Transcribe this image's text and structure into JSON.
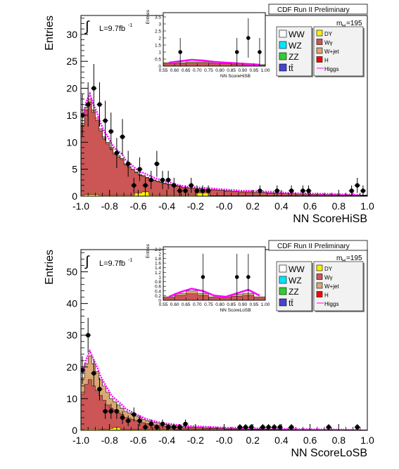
{
  "colors": {
    "WW": "#ffffff",
    "WZ": "#00e5ff",
    "ZZ": "#33cc33",
    "tt": "#4444cc",
    "DY": "#ffee00",
    "Wgamma": "#cc5555",
    "Wjet": "#d9a875",
    "H": "#ff0000",
    "Higgs": "#ff00ff",
    "data": "#000000"
  },
  "chart_data": [
    {
      "type": "bar",
      "panel": "top",
      "header": "CDF Run II Preliminary",
      "mass_label": "m",
      "mass_sub": "H",
      "mass_value": "=195",
      "lumi": "L=9.7fb",
      "lumi_sup": "-1",
      "integral": "∫",
      "xlabel": "NN ScoreHiSB",
      "ylabel": "Entries",
      "xlim": [
        -1.0,
        1.0
      ],
      "ylim": [
        0,
        33.5
      ],
      "xticks": [
        "-1.0",
        "-0.8",
        "-0.6",
        "-0.4",
        "-0.2",
        "-0.0",
        "0.2",
        "0.4",
        "0.6",
        "0.8",
        "1.0"
      ],
      "yticks": [
        "0",
        "5",
        "10",
        "15",
        "20",
        "25",
        "30"
      ],
      "legend": {
        "left": [
          {
            "label": "WW",
            "key": "WW"
          },
          {
            "label": "WZ",
            "key": "WZ"
          },
          {
            "label": "ZZ",
            "key": "ZZ"
          },
          {
            "label": "tt̄",
            "key": "tt"
          }
        ],
        "right": [
          {
            "label": "DY",
            "key": "DY"
          },
          {
            "label": "Wγ",
            "key": "Wgamma"
          },
          {
            "label": "W+jet",
            "key": "Wjet"
          },
          {
            "label": "H",
            "key": "H"
          },
          {
            "label": "Higgs",
            "key": "Higgs",
            "line": true
          }
        ]
      },
      "bin_edges": [
        -1.0,
        -0.9,
        -0.8,
        -0.7,
        -0.6,
        -0.5,
        -0.4,
        -0.3,
        -0.2,
        -0.1,
        0.0,
        0.1,
        0.2,
        0.3,
        0.4,
        0.5,
        0.6,
        0.7,
        0.8,
        0.9,
        1.0
      ],
      "fine_bins": {
        "edges": [
          -1.0,
          -0.975,
          -0.95,
          -0.925,
          -0.9,
          -0.875,
          -0.85,
          -0.825,
          -0.8,
          -0.775,
          -0.75,
          -0.725,
          -0.7,
          -0.675,
          -0.65,
          -0.625,
          -0.6,
          -0.575,
          -0.55,
          -0.525,
          -0.5,
          -0.475,
          -0.45,
          -0.425,
          -0.4,
          -0.35,
          -0.3,
          -0.25,
          -0.2,
          -0.15,
          -0.1,
          -0.05,
          0.0,
          0.05,
          0.1,
          0.15,
          0.2,
          0.3,
          0.4,
          0.5,
          0.6,
          0.7,
          0.8,
          0.9,
          1.0
        ],
        "stack_total": [
          13.5,
          16.5,
          18,
          16,
          14.5,
          12.5,
          11,
          10,
          9,
          8,
          7.5,
          7,
          6,
          5.5,
          5,
          4.5,
          4,
          3.8,
          3.5,
          3.2,
          3,
          2.8,
          2.6,
          2.4,
          2.2,
          1.9,
          1.6,
          1.5,
          1.4,
          1.3,
          1.2,
          1.1,
          1.0,
          0.9,
          0.8,
          0.8,
          0.7,
          0.6,
          0.5,
          0.4,
          0.35,
          0.3,
          0.25,
          0.2
        ],
        "dy": [
          0.2,
          0.3,
          0.3,
          0.3,
          0.3,
          0.2,
          0.2,
          0.2,
          0.2,
          0.2,
          0.2,
          0.2,
          0.2,
          0.2,
          0.2,
          0.6,
          0.6,
          0.8,
          0.8,
          0.2,
          0.2,
          0.2,
          0.2,
          0.2,
          0.2,
          0.2,
          0.2,
          0.2,
          0.6,
          0.6,
          0.1,
          0.1,
          0.1,
          0.1,
          0.1,
          0.1,
          0.1,
          0.1,
          0.1,
          0.1,
          0.1,
          0.1,
          0.1,
          0.1
        ],
        "higgs": [
          14.5,
          17.5,
          19,
          17,
          15.5,
          13.5,
          12,
          11,
          9.8,
          8.8,
          8.3,
          7.8,
          6.7,
          6.2,
          5.6,
          5.0,
          4.5,
          4.3,
          4.0,
          3.7,
          3.4,
          3.2,
          2.9,
          2.7,
          2.5,
          2.1,
          1.8,
          1.7,
          1.6,
          1.5,
          1.4,
          1.3,
          1.2,
          1.1,
          1.0,
          1.0,
          0.9,
          0.8,
          0.6,
          0.5,
          0.45,
          0.4,
          0.3,
          0.25
        ]
      },
      "data_points": [
        {
          "x": -0.99,
          "y": 15,
          "err": 3.9
        },
        {
          "x": -0.95,
          "y": 17,
          "err": 4.1
        },
        {
          "x": -0.91,
          "y": 20,
          "err": 4.5
        },
        {
          "x": -0.87,
          "y": 17,
          "err": 4.1
        },
        {
          "x": -0.83,
          "y": 14,
          "err": 3.7
        },
        {
          "x": -0.79,
          "y": 12,
          "err": 3.5
        },
        {
          "x": -0.75,
          "y": 8,
          "err": 2.8
        },
        {
          "x": -0.71,
          "y": 11,
          "err": 3.3
        },
        {
          "x": -0.67,
          "y": 6,
          "err": 2.4
        },
        {
          "x": -0.63,
          "y": 2,
          "err": 1.4
        },
        {
          "x": -0.59,
          "y": 5,
          "err": 2.2
        },
        {
          "x": -0.55,
          "y": 2,
          "err": 1.4
        },
        {
          "x": -0.51,
          "y": 3,
          "err": 1.7
        },
        {
          "x": -0.47,
          "y": 6,
          "err": 2.4
        },
        {
          "x": -0.43,
          "y": 3,
          "err": 1.7
        },
        {
          "x": -0.39,
          "y": 3,
          "err": 1.7
        },
        {
          "x": -0.35,
          "y": 2,
          "err": 1.4
        },
        {
          "x": -0.31,
          "y": 1,
          "err": 1.0
        },
        {
          "x": -0.27,
          "y": 1,
          "err": 1.0
        },
        {
          "x": -0.23,
          "y": 2,
          "err": 1.4
        },
        {
          "x": -0.19,
          "y": 1,
          "err": 1.0
        },
        {
          "x": -0.15,
          "y": 1,
          "err": 1.0
        },
        {
          "x": -0.11,
          "y": 1,
          "err": 1.0
        },
        {
          "x": 0.25,
          "y": 1,
          "err": 1.0
        },
        {
          "x": 0.37,
          "y": 1,
          "err": 1.0
        },
        {
          "x": 0.47,
          "y": 1,
          "err": 1.0
        },
        {
          "x": 0.55,
          "y": 1,
          "err": 1.0
        },
        {
          "x": 0.59,
          "y": 1,
          "err": 1.0
        },
        {
          "x": 0.89,
          "y": 1,
          "err": 1.0
        },
        {
          "x": 0.93,
          "y": 2,
          "err": 1.4
        },
        {
          "x": 0.97,
          "y": 1,
          "err": 1.0
        }
      ],
      "inset": {
        "xlabel": "NN ScoreHiSB",
        "ylabel": "Entries",
        "xlim": [
          0.55,
          1.0
        ],
        "ylim": [
          0,
          3.8
        ],
        "xticks": [
          "0.55",
          "0.60",
          "0.65",
          "0.70",
          "0.75",
          "0.80",
          "0.85",
          "0.90",
          "0.95",
          "1.00"
        ],
        "yticks": [
          "0",
          "0.5",
          "1",
          "1.5",
          "2",
          "2.5",
          "3",
          "3.5"
        ],
        "edges": [
          0.55,
          0.6,
          0.65,
          0.7,
          0.75,
          0.8,
          0.85,
          0.9,
          0.95,
          1.0
        ],
        "stack_total": [
          0.25,
          0.25,
          0.3,
          0.3,
          0.25,
          0.25,
          0.2,
          0.15,
          0.1
        ],
        "higgs": [
          0.25,
          0.35,
          0.45,
          0.4,
          0.3,
          0.25,
          0.2,
          0.15,
          0.1
        ],
        "data_points": [
          {
            "x": 0.625,
            "y": 1,
            "err": 1.0
          },
          {
            "x": 0.875,
            "y": 1,
            "err": 1.0
          },
          {
            "x": 0.925,
            "y": 2,
            "err": 1.4
          },
          {
            "x": 0.975,
            "y": 1,
            "err": 1.0
          }
        ]
      }
    },
    {
      "type": "bar",
      "panel": "bottom",
      "header": "CDF Run II Preliminary",
      "mass_label": "m",
      "mass_sub": "H",
      "mass_value": "=195",
      "lumi": "L=9.7fb",
      "lumi_sup": "-1",
      "integral": "∫",
      "xlabel": "NN ScoreLoSB",
      "ylabel": "Entries",
      "xlim": [
        -1.0,
        1.0
      ],
      "ylim": [
        0,
        57
      ],
      "xticks": [
        "-1.0",
        "-0.8",
        "-0.6",
        "-0.4",
        "-0.2",
        "-0.0",
        "0.2",
        "0.4",
        "0.6",
        "0.8",
        "1.0"
      ],
      "yticks": [
        "0",
        "10",
        "20",
        "30",
        "40",
        "50"
      ],
      "legend": {
        "left": [
          {
            "label": "WW",
            "key": "WW"
          },
          {
            "label": "WZ",
            "key": "WZ"
          },
          {
            "label": "ZZ",
            "key": "ZZ"
          },
          {
            "label": "tt̄",
            "key": "tt"
          }
        ],
        "right": [
          {
            "label": "DY",
            "key": "DY"
          },
          {
            "label": "Wγ",
            "key": "Wgamma"
          },
          {
            "label": "W+jet",
            "key": "Wjet"
          },
          {
            "label": "H",
            "key": "H"
          },
          {
            "label": "Higgs",
            "key": "Higgs",
            "line": true
          }
        ]
      },
      "fine_bins": {
        "edges": [
          -1.0,
          -0.975,
          -0.95,
          -0.925,
          -0.9,
          -0.875,
          -0.85,
          -0.825,
          -0.8,
          -0.775,
          -0.75,
          -0.725,
          -0.7,
          -0.675,
          -0.65,
          -0.625,
          -0.6,
          -0.575,
          -0.55,
          -0.525,
          -0.5,
          -0.475,
          -0.45,
          -0.425,
          -0.4,
          -0.35,
          -0.3,
          -0.25,
          -0.2,
          -0.15,
          -0.1,
          -0.05,
          0.0,
          0.05,
          0.1,
          0.15,
          0.2,
          0.3,
          0.4,
          0.5,
          0.6,
          0.7,
          0.8,
          0.9,
          1.0
        ],
        "stack_total": [
          16.5,
          21,
          23.5,
          21,
          18.5,
          16,
          14,
          12,
          10,
          9,
          8,
          7,
          6,
          5.5,
          5,
          4.5,
          4,
          3.5,
          3,
          2.8,
          2.5,
          2.3,
          2.1,
          1.9,
          1.7,
          1.4,
          1.2,
          1.1,
          1.0,
          0.9,
          0.8,
          0.7,
          0.6,
          0.6,
          0.5,
          0.5,
          0.4,
          0.35,
          0.3,
          0.25,
          0.2,
          0.2,
          0.15,
          0.1
        ],
        "red": [
          11.5,
          14.5,
          16,
          14,
          12.5,
          11,
          9.5,
          8,
          7,
          6.5,
          5.5,
          5,
          4,
          3.8,
          3.4,
          3.1,
          2.7,
          2.4,
          2.1,
          1.9,
          1.7,
          1.6,
          1.4,
          1.3,
          1.2,
          1.0,
          0.8,
          0.8,
          0.7,
          0.6,
          0.6,
          0.5,
          0.4,
          0.4,
          0.4,
          0.35,
          0.3,
          0.25,
          0.2,
          0.18,
          0.15,
          0.15,
          0.1,
          0.08
        ],
        "dy": [
          0.3,
          0.4,
          0.4,
          0.4,
          0.4,
          0.3,
          0.3,
          0.3,
          0.6,
          0.9,
          0.9,
          0.3,
          0.3,
          0.3,
          0.3,
          0.3,
          0.3,
          0.3,
          0.3,
          0.3,
          0.3,
          0.3,
          0.3,
          0.3,
          0.3,
          0.2,
          0.2,
          0.2,
          0.2,
          0.2,
          0.1,
          0.1,
          0.1,
          0.1,
          0.1,
          0.1,
          0.1,
          0.1,
          0.1,
          0.1,
          0.1,
          0.1,
          0.1,
          0.1
        ],
        "higgs": [
          18,
          22.5,
          25,
          22.5,
          20,
          17,
          15,
          13,
          11,
          10,
          9,
          8,
          6.8,
          6.2,
          5.6,
          5.0,
          4.5,
          4.0,
          3.5,
          3.2,
          2.9,
          2.6,
          2.4,
          2.2,
          2.0,
          1.7,
          1.4,
          1.3,
          1.2,
          1.1,
          1.0,
          0.9,
          0.8,
          0.8,
          0.7,
          0.7,
          0.6,
          0.5,
          0.4,
          0.35,
          0.3,
          0.25,
          0.2,
          0.15
        ]
      },
      "data_points": [
        {
          "x": -0.99,
          "y": 19,
          "err": 4.4
        },
        {
          "x": -0.95,
          "y": 30,
          "err": 5.5
        },
        {
          "x": -0.91,
          "y": 18,
          "err": 4.2
        },
        {
          "x": -0.87,
          "y": 13,
          "err": 3.6
        },
        {
          "x": -0.83,
          "y": 6,
          "err": 2.4
        },
        {
          "x": -0.79,
          "y": 6,
          "err": 2.4
        },
        {
          "x": -0.75,
          "y": 6,
          "err": 2.4
        },
        {
          "x": -0.71,
          "y": 4,
          "err": 2.0
        },
        {
          "x": -0.67,
          "y": 3,
          "err": 1.7
        },
        {
          "x": -0.63,
          "y": 5,
          "err": 2.2
        },
        {
          "x": -0.59,
          "y": 3,
          "err": 1.7
        },
        {
          "x": -0.55,
          "y": 1,
          "err": 1.0
        },
        {
          "x": -0.51,
          "y": 2,
          "err": 1.4
        },
        {
          "x": -0.47,
          "y": 1,
          "err": 1.0
        },
        {
          "x": -0.43,
          "y": 2,
          "err": 1.4
        },
        {
          "x": -0.39,
          "y": 1,
          "err": 1.0
        },
        {
          "x": -0.35,
          "y": 1,
          "err": 1.0
        },
        {
          "x": -0.31,
          "y": 1,
          "err": 1.0
        },
        {
          "x": -0.27,
          "y": 2,
          "err": 1.4
        },
        {
          "x": 0.11,
          "y": 1,
          "err": 1.0
        },
        {
          "x": 0.15,
          "y": 1,
          "err": 1.0
        },
        {
          "x": 0.19,
          "y": 1,
          "err": 1.0
        },
        {
          "x": 0.27,
          "y": 1,
          "err": 1.0
        },
        {
          "x": 0.31,
          "y": 1,
          "err": 1.0
        },
        {
          "x": 0.35,
          "y": 1,
          "err": 1.0
        },
        {
          "x": 0.39,
          "y": 1,
          "err": 1.0
        },
        {
          "x": 0.47,
          "y": 1,
          "err": 1.0
        },
        {
          "x": 0.73,
          "y": 1,
          "err": 1.0
        },
        {
          "x": 0.93,
          "y": 1,
          "err": 1.0
        }
      ],
      "inset": {
        "xlabel": "NN ScoreLoSB",
        "ylabel": "Entries",
        "xlim": [
          0.55,
          1.0
        ],
        "ylim": [
          0,
          2.3
        ],
        "xticks": [
          "0.55",
          "0.60",
          "0.65",
          "0.70",
          "0.75",
          "0.80",
          "0.85",
          "0.90",
          "0.95",
          "1.00"
        ],
        "yticks": [
          "0",
          "0.2",
          "0.4",
          "0.6",
          "0.8",
          "1",
          "1.2",
          "1.4",
          "1.6",
          "1.8",
          "2",
          "2.2"
        ],
        "edges": [
          0.55,
          0.6,
          0.65,
          0.7,
          0.75,
          0.8,
          0.85,
          0.9,
          0.95,
          1.0
        ],
        "stack_total": [
          0.15,
          0.3,
          0.4,
          0.3,
          0.15,
          0.15,
          0.25,
          0.3,
          0.15
        ],
        "higgs": [
          0.15,
          0.35,
          0.5,
          0.4,
          0.2,
          0.15,
          0.3,
          0.45,
          0.2
        ],
        "data_points": [
          {
            "x": 0.725,
            "y": 1,
            "err": 1.0
          },
          {
            "x": 0.875,
            "y": 1,
            "err": 1.0
          },
          {
            "x": 0.925,
            "y": 1,
            "err": 1.0
          }
        ]
      }
    }
  ]
}
